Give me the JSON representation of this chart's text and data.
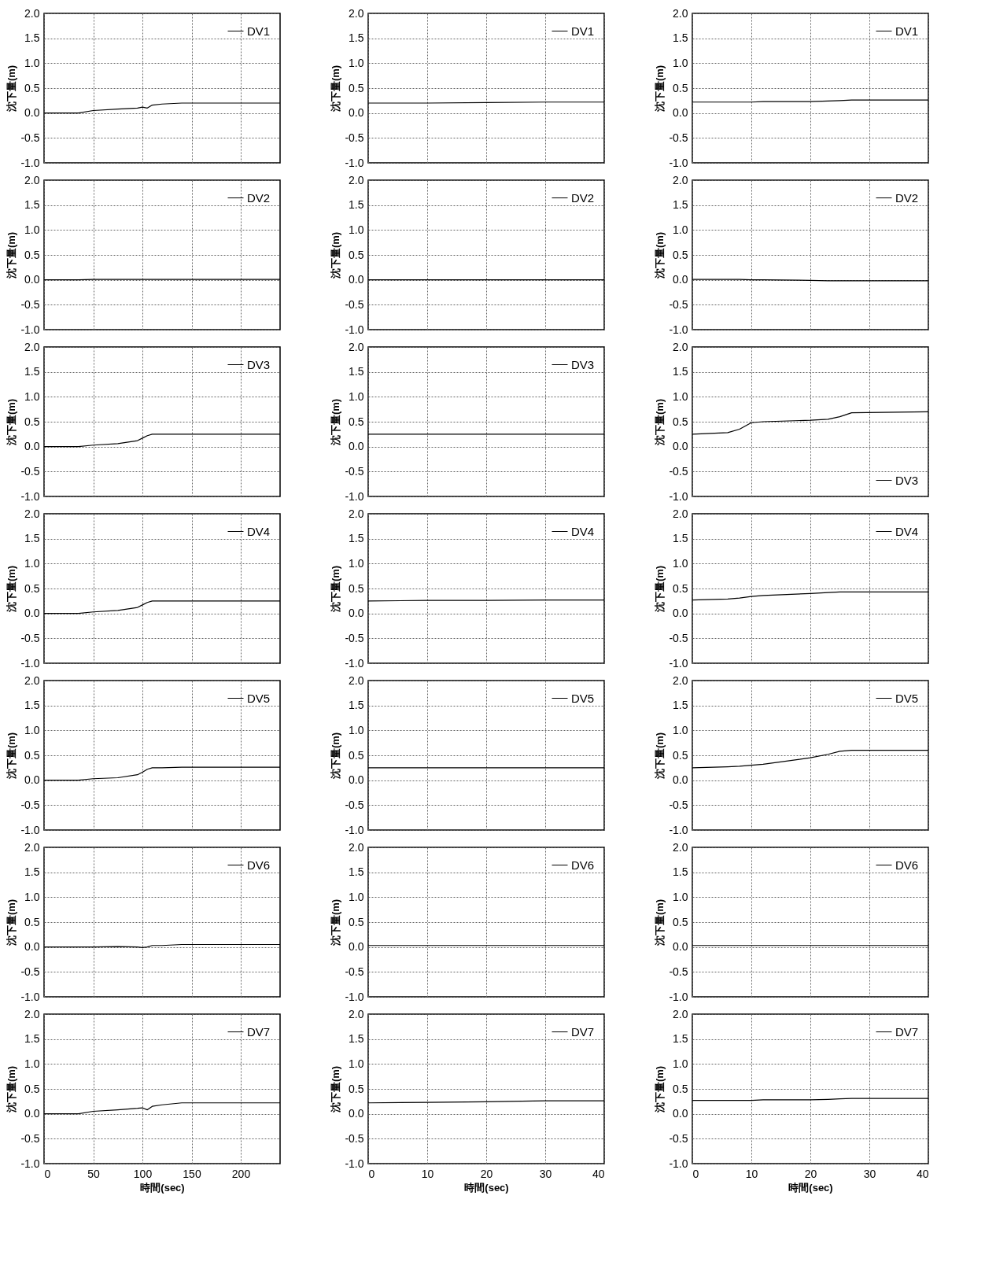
{
  "chart_data": [
    {
      "type": "line",
      "ylabel": "沈下量(m)",
      "x": [
        0,
        35,
        50,
        75,
        95,
        100,
        105,
        110,
        120,
        140,
        240
      ],
      "series": [
        {
          "name": "DV1",
          "color": "#000000",
          "values": [
            0,
            0,
            0.05,
            0.08,
            0.1,
            0.12,
            0.1,
            0.16,
            0.18,
            0.2,
            0.2
          ]
        }
      ],
      "xlim": [
        0,
        240
      ],
      "xticks": [
        0,
        50,
        100,
        150,
        200
      ],
      "ylim": [
        -1,
        2
      ],
      "yticks": [
        {
          "value": -1,
          "label": "-1.0"
        },
        {
          "value": -0.5,
          "label": "-0.5"
        },
        {
          "value": 0,
          "label": "0.0"
        },
        {
          "value": 0.5,
          "label": "0.5"
        },
        {
          "value": 1,
          "label": "1.0"
        },
        {
          "value": 1.5,
          "label": "1.5"
        },
        {
          "value": 2,
          "label": "2.0"
        }
      ],
      "grid": true,
      "legend": "top right",
      "tick_labels": "y"
    },
    {
      "type": "line",
      "ylabel": "沈下量(m)",
      "x": [
        0,
        10,
        20,
        30,
        40
      ],
      "series": [
        {
          "name": "DV1",
          "color": "#000000",
          "values": [
            0.2,
            0.2,
            0.21,
            0.22,
            0.22
          ]
        }
      ],
      "xlim": [
        0,
        40
      ],
      "xticks": [
        0,
        10,
        20,
        30,
        40
      ],
      "ylim": [
        -1,
        2
      ],
      "yticks": [
        {
          "value": -1,
          "label": "-1.0"
        },
        {
          "value": -0.5,
          "label": "-0.5"
        },
        {
          "value": 0,
          "label": "0.0"
        },
        {
          "value": 0.5,
          "label": "0.5"
        },
        {
          "value": 1,
          "label": "1.0"
        },
        {
          "value": 1.5,
          "label": "1.5"
        },
        {
          "value": 2,
          "label": "2.0"
        }
      ],
      "grid": true,
      "legend": "top right",
      "tick_labels": "y"
    },
    {
      "type": "line",
      "ylabel": "沈下量(m)",
      "x": [
        0,
        6,
        8,
        10,
        12,
        20,
        23,
        25,
        27,
        40
      ],
      "series": [
        {
          "name": "DV1",
          "color": "#000000",
          "values": [
            0.22,
            0.22,
            0.22,
            0.22,
            0.23,
            0.23,
            0.24,
            0.25,
            0.26,
            0.26
          ]
        }
      ],
      "xlim": [
        0,
        40
      ],
      "xticks": [
        0,
        10,
        20,
        30,
        40
      ],
      "ylim": [
        -1,
        2
      ],
      "yticks": [
        {
          "value": -1,
          "label": "-1.0"
        },
        {
          "value": -0.5,
          "label": "-0.5"
        },
        {
          "value": 0,
          "label": "0.0"
        },
        {
          "value": 0.5,
          "label": "0.5"
        },
        {
          "value": 1,
          "label": "1.0"
        },
        {
          "value": 1.5,
          "label": "1.5"
        },
        {
          "value": 2,
          "label": "2.0"
        }
      ],
      "grid": true,
      "legend": "top right",
      "tick_labels": "y"
    },
    {
      "type": "line",
      "ylabel": "沈下量(m)",
      "x": [
        0,
        35,
        50,
        75,
        95,
        100,
        105,
        110,
        120,
        140,
        240
      ],
      "series": [
        {
          "name": "DV2",
          "color": "#000000",
          "values": [
            0,
            0,
            0.01,
            0.01,
            0.01,
            0.01,
            0.01,
            0.01,
            0.01,
            0.01,
            0.01
          ]
        }
      ],
      "xlim": [
        0,
        240
      ],
      "xticks": [
        0,
        50,
        100,
        150,
        200
      ],
      "ylim": [
        -1,
        2
      ],
      "yticks": [
        {
          "value": -1,
          "label": "-1.0"
        },
        {
          "value": -0.5,
          "label": "-0.5"
        },
        {
          "value": 0,
          "label": "0.0"
        },
        {
          "value": 0.5,
          "label": "0.5"
        },
        {
          "value": 1,
          "label": "1.0"
        },
        {
          "value": 1.5,
          "label": "1.5"
        },
        {
          "value": 2,
          "label": "2.0"
        }
      ],
      "grid": true,
      "legend": "top right",
      "tick_labels": "y"
    },
    {
      "type": "line",
      "ylabel": "沈下量(m)",
      "x": [
        0,
        10,
        20,
        30,
        40
      ],
      "series": [
        {
          "name": "DV2",
          "color": "#000000",
          "values": [
            0,
            0,
            0,
            0,
            0
          ]
        }
      ],
      "xlim": [
        0,
        40
      ],
      "xticks": [
        0,
        10,
        20,
        30,
        40
      ],
      "ylim": [
        -1,
        2
      ],
      "yticks": [
        {
          "value": -1,
          "label": "-1.0"
        },
        {
          "value": -0.5,
          "label": "-0.5"
        },
        {
          "value": 0,
          "label": "0.0"
        },
        {
          "value": 0.5,
          "label": "0.5"
        },
        {
          "value": 1,
          "label": "1.0"
        },
        {
          "value": 1.5,
          "label": "1.5"
        },
        {
          "value": 2,
          "label": "2.0"
        }
      ],
      "grid": true,
      "legend": "top right",
      "tick_labels": "y"
    },
    {
      "type": "line",
      "ylabel": "沈下量(m)",
      "x": [
        0,
        6,
        8,
        10,
        12,
        20,
        23,
        25,
        27,
        40
      ],
      "series": [
        {
          "name": "DV2",
          "color": "#000000",
          "values": [
            0.01,
            0.01,
            0.01,
            0,
            0,
            -0.01,
            -0.02,
            -0.02,
            -0.02,
            -0.02
          ]
        }
      ],
      "xlim": [
        0,
        40
      ],
      "xticks": [
        0,
        10,
        20,
        30,
        40
      ],
      "ylim": [
        -1,
        2
      ],
      "yticks": [
        {
          "value": -1,
          "label": "-1.0"
        },
        {
          "value": -0.5,
          "label": "-0.5"
        },
        {
          "value": 0,
          "label": "0.0"
        },
        {
          "value": 0.5,
          "label": "0.5"
        },
        {
          "value": 1,
          "label": "1.0"
        },
        {
          "value": 1.5,
          "label": "1.5"
        },
        {
          "value": 2,
          "label": "2.0"
        }
      ],
      "grid": true,
      "legend": "top right",
      "tick_labels": "y"
    },
    {
      "type": "line",
      "ylabel": "沈下量(m)",
      "x": [
        0,
        35,
        50,
        75,
        95,
        100,
        105,
        110,
        120,
        140,
        240
      ],
      "series": [
        {
          "name": "DV3",
          "color": "#000000",
          "values": [
            0,
            0,
            0.03,
            0.06,
            0.12,
            0.17,
            0.22,
            0.25,
            0.25,
            0.25,
            0.25
          ]
        }
      ],
      "xlim": [
        0,
        240
      ],
      "xticks": [
        0,
        50,
        100,
        150,
        200
      ],
      "ylim": [
        -1,
        2
      ],
      "yticks": [
        {
          "value": -1,
          "label": "-1.0"
        },
        {
          "value": -0.5,
          "label": "-0.5"
        },
        {
          "value": 0,
          "label": "0.0"
        },
        {
          "value": 0.5,
          "label": "0.5"
        },
        {
          "value": 1,
          "label": "1.0"
        },
        {
          "value": 1.5,
          "label": "1.5"
        },
        {
          "value": 2,
          "label": "2.0"
        }
      ],
      "grid": true,
      "legend": "top right",
      "tick_labels": "y"
    },
    {
      "type": "line",
      "ylabel": "沈下量(m)",
      "x": [
        0,
        10,
        20,
        30,
        40
      ],
      "series": [
        {
          "name": "DV3",
          "color": "#000000",
          "values": [
            0.25,
            0.25,
            0.25,
            0.25,
            0.25
          ]
        }
      ],
      "xlim": [
        0,
        40
      ],
      "xticks": [
        0,
        10,
        20,
        30,
        40
      ],
      "ylim": [
        -1,
        2
      ],
      "yticks": [
        {
          "value": -1,
          "label": "-1.0"
        },
        {
          "value": -0.5,
          "label": "-0.5"
        },
        {
          "value": 0,
          "label": "0.0"
        },
        {
          "value": 0.5,
          "label": "0.5"
        },
        {
          "value": 1,
          "label": "1.0"
        },
        {
          "value": 1.5,
          "label": "1.5"
        },
        {
          "value": 2,
          "label": "2.0"
        }
      ],
      "grid": true,
      "legend": "top right",
      "tick_labels": "y"
    },
    {
      "type": "line",
      "ylabel": "沈下量(m)",
      "x": [
        0,
        6,
        8,
        10,
        12,
        20,
        23,
        25,
        27,
        40
      ],
      "series": [
        {
          "name": "DV3",
          "color": "#000000",
          "values": [
            0.25,
            0.28,
            0.35,
            0.48,
            0.5,
            0.53,
            0.55,
            0.6,
            0.68,
            0.7
          ]
        }
      ],
      "xlim": [
        0,
        40
      ],
      "xticks": [
        0,
        10,
        20,
        30,
        40
      ],
      "ylim": [
        -1,
        2
      ],
      "yticks": [
        {
          "value": -1,
          "label": "-1.0"
        },
        {
          "value": -0.5,
          "label": "-0.5"
        },
        {
          "value": 0,
          "label": "0.0"
        },
        {
          "value": 0.5,
          "label": "0.5"
        },
        {
          "value": 1,
          "label": "1.0"
        },
        {
          "value": 1.5,
          "label": "1.5"
        },
        {
          "value": 2,
          "label": "2.0"
        }
      ],
      "grid": true,
      "legend": "bottom right",
      "tick_labels": "y"
    },
    {
      "type": "line",
      "ylabel": "沈下量(m)",
      "x": [
        0,
        35,
        50,
        75,
        95,
        100,
        105,
        110,
        120,
        140,
        240
      ],
      "series": [
        {
          "name": "DV4",
          "color": "#000000",
          "values": [
            0,
            0,
            0.03,
            0.06,
            0.12,
            0.17,
            0.22,
            0.25,
            0.25,
            0.25,
            0.25
          ]
        }
      ],
      "xlim": [
        0,
        240
      ],
      "xticks": [
        0,
        50,
        100,
        150,
        200
      ],
      "ylim": [
        -1,
        2
      ],
      "yticks": [
        {
          "value": -1,
          "label": "-1.0"
        },
        {
          "value": -0.5,
          "label": "-0.5"
        },
        {
          "value": 0,
          "label": "0.0"
        },
        {
          "value": 0.5,
          "label": "0.5"
        },
        {
          "value": 1,
          "label": "1.0"
        },
        {
          "value": 1.5,
          "label": "1.5"
        },
        {
          "value": 2,
          "label": "2.0"
        }
      ],
      "grid": true,
      "legend": "top right",
      "tick_labels": "y"
    },
    {
      "type": "line",
      "ylabel": "沈下量(m)",
      "x": [
        0,
        10,
        20,
        30,
        40
      ],
      "series": [
        {
          "name": "DV4",
          "color": "#000000",
          "values": [
            0.25,
            0.26,
            0.26,
            0.27,
            0.27
          ]
        }
      ],
      "xlim": [
        0,
        40
      ],
      "xticks": [
        0,
        10,
        20,
        30,
        40
      ],
      "ylim": [
        -1,
        2
      ],
      "yticks": [
        {
          "value": -1,
          "label": "-1.0"
        },
        {
          "value": -0.5,
          "label": "-0.5"
        },
        {
          "value": 0,
          "label": "0.0"
        },
        {
          "value": 0.5,
          "label": "0.5"
        },
        {
          "value": 1,
          "label": "1.0"
        },
        {
          "value": 1.5,
          "label": "1.5"
        },
        {
          "value": 2,
          "label": "2.0"
        }
      ],
      "grid": true,
      "legend": "top right",
      "tick_labels": "y"
    },
    {
      "type": "line",
      "ylabel": "沈下量(m)",
      "x": [
        0,
        6,
        8,
        10,
        12,
        20,
        23,
        25,
        27,
        40
      ],
      "series": [
        {
          "name": "DV4",
          "color": "#000000",
          "values": [
            0.27,
            0.29,
            0.31,
            0.34,
            0.36,
            0.4,
            0.42,
            0.43,
            0.43,
            0.43
          ]
        }
      ],
      "xlim": [
        0,
        40
      ],
      "xticks": [
        0,
        10,
        20,
        30,
        40
      ],
      "ylim": [
        -1,
        2
      ],
      "yticks": [
        {
          "value": -1,
          "label": "-1.0"
        },
        {
          "value": -0.5,
          "label": "-0.5"
        },
        {
          "value": 0,
          "label": "0.0"
        },
        {
          "value": 0.5,
          "label": "0.5"
        },
        {
          "value": 1,
          "label": "1.0"
        },
        {
          "value": 1.5,
          "label": "1.5"
        },
        {
          "value": 2,
          "label": "2.0"
        }
      ],
      "grid": true,
      "legend": "top right",
      "tick_labels": "y"
    },
    {
      "type": "line",
      "ylabel": "沈下量(m)",
      "x": [
        0,
        35,
        50,
        75,
        95,
        100,
        105,
        110,
        120,
        140,
        240
      ],
      "series": [
        {
          "name": "DV5",
          "color": "#000000",
          "values": [
            0,
            0,
            0.03,
            0.05,
            0.11,
            0.16,
            0.22,
            0.25,
            0.25,
            0.26,
            0.26
          ]
        }
      ],
      "xlim": [
        0,
        240
      ],
      "xticks": [
        0,
        50,
        100,
        150,
        200
      ],
      "ylim": [
        -1,
        2
      ],
      "yticks": [
        {
          "value": -1,
          "label": "-1.0"
        },
        {
          "value": -0.5,
          "label": "-0.5"
        },
        {
          "value": 0,
          "label": "0.0"
        },
        {
          "value": 0.5,
          "label": "0.5"
        },
        {
          "value": 1,
          "label": "1.0"
        },
        {
          "value": 1.5,
          "label": "1.5"
        },
        {
          "value": 2,
          "label": "2.0"
        }
      ],
      "grid": true,
      "legend": "top right",
      "tick_labels": "y"
    },
    {
      "type": "line",
      "ylabel": "沈下量(m)",
      "x": [
        0,
        10,
        20,
        30,
        40
      ],
      "series": [
        {
          "name": "DV5",
          "color": "#000000",
          "values": [
            0.25,
            0.25,
            0.25,
            0.25,
            0.25
          ]
        }
      ],
      "xlim": [
        0,
        40
      ],
      "xticks": [
        0,
        10,
        20,
        30,
        40
      ],
      "ylim": [
        -1,
        2
      ],
      "yticks": [
        {
          "value": -1,
          "label": "-1.0"
        },
        {
          "value": -0.5,
          "label": "-0.5"
        },
        {
          "value": 0,
          "label": "0.0"
        },
        {
          "value": 0.5,
          "label": "0.5"
        },
        {
          "value": 1,
          "label": "1.0"
        },
        {
          "value": 1.5,
          "label": "1.5"
        },
        {
          "value": 2,
          "label": "2.0"
        }
      ],
      "grid": true,
      "legend": "top right",
      "tick_labels": "y"
    },
    {
      "type": "line",
      "ylabel": "沈下量(m)",
      "x": [
        0,
        6,
        8,
        10,
        12,
        20,
        23,
        25,
        27,
        40
      ],
      "series": [
        {
          "name": "DV5",
          "color": "#000000",
          "values": [
            0.25,
            0.27,
            0.28,
            0.3,
            0.32,
            0.45,
            0.52,
            0.58,
            0.6,
            0.6
          ]
        }
      ],
      "xlim": [
        0,
        40
      ],
      "xticks": [
        0,
        10,
        20,
        30,
        40
      ],
      "ylim": [
        -1,
        2
      ],
      "yticks": [
        {
          "value": -1,
          "label": "-1.0"
        },
        {
          "value": -0.5,
          "label": "-0.5"
        },
        {
          "value": 0,
          "label": "0.0"
        },
        {
          "value": 0.5,
          "label": "0.5"
        },
        {
          "value": 1,
          "label": "1.0"
        },
        {
          "value": 1.5,
          "label": "1.5"
        },
        {
          "value": 2,
          "label": "2.0"
        }
      ],
      "grid": true,
      "legend": "top right",
      "tick_labels": "y"
    },
    {
      "type": "line",
      "ylabel": "沈下量(m)",
      "x": [
        0,
        35,
        50,
        75,
        95,
        100,
        105,
        110,
        120,
        140,
        240
      ],
      "series": [
        {
          "name": "DV6",
          "color": "#000000",
          "values": [
            0,
            0,
            0,
            0.01,
            0,
            -0.01,
            0,
            0.03,
            0.03,
            0.05,
            0.05
          ]
        }
      ],
      "xlim": [
        0,
        240
      ],
      "xticks": [
        0,
        50,
        100,
        150,
        200
      ],
      "ylim": [
        -1,
        2
      ],
      "yticks": [
        {
          "value": -1,
          "label": "-1.0"
        },
        {
          "value": -0.5,
          "label": "-0.5"
        },
        {
          "value": 0,
          "label": "0.0"
        },
        {
          "value": 0.5,
          "label": "0.5"
        },
        {
          "value": 1,
          "label": "1.0"
        },
        {
          "value": 1.5,
          "label": "1.5"
        },
        {
          "value": 2,
          "label": "2.0"
        }
      ],
      "grid": true,
      "legend": "top right",
      "tick_labels": "y"
    },
    {
      "type": "line",
      "ylabel": "沈下量(m)",
      "x": [
        0,
        10,
        20,
        30,
        40
      ],
      "series": [
        {
          "name": "DV6",
          "color": "#000000",
          "values": [
            0.03,
            0.03,
            0.03,
            0.03,
            0.03
          ]
        }
      ],
      "xlim": [
        0,
        40
      ],
      "xticks": [
        0,
        10,
        20,
        30,
        40
      ],
      "ylim": [
        -1,
        2
      ],
      "yticks": [
        {
          "value": -1,
          "label": "-1.0"
        },
        {
          "value": -0.5,
          "label": "-0.5"
        },
        {
          "value": 0,
          "label": "0.0"
        },
        {
          "value": 0.5,
          "label": "0.5"
        },
        {
          "value": 1,
          "label": "1.0"
        },
        {
          "value": 1.5,
          "label": "1.5"
        },
        {
          "value": 2,
          "label": "2.0"
        }
      ],
      "grid": true,
      "legend": "top right",
      "tick_labels": "y"
    },
    {
      "type": "line",
      "ylabel": "沈下量(m)",
      "x": [
        0,
        6,
        8,
        10,
        12,
        20,
        23,
        25,
        27,
        40
      ],
      "series": [
        {
          "name": "DV6",
          "color": "#000000",
          "values": [
            0.03,
            0.03,
            0.03,
            0.03,
            0.03,
            0.03,
            0.03,
            0.03,
            0.03,
            0.03
          ]
        }
      ],
      "xlim": [
        0,
        40
      ],
      "xticks": [
        0,
        10,
        20,
        30,
        40
      ],
      "ylim": [
        -1,
        2
      ],
      "yticks": [
        {
          "value": -1,
          "label": "-1.0"
        },
        {
          "value": -0.5,
          "label": "-0.5"
        },
        {
          "value": 0,
          "label": "0.0"
        },
        {
          "value": 0.5,
          "label": "0.5"
        },
        {
          "value": 1,
          "label": "1.0"
        },
        {
          "value": 1.5,
          "label": "1.5"
        },
        {
          "value": 2,
          "label": "2.0"
        }
      ],
      "grid": true,
      "legend": "top right",
      "tick_labels": "y"
    },
    {
      "type": "line",
      "xlabel": "時間(sec)",
      "ylabel": "沈下量(m)",
      "x": [
        0,
        35,
        50,
        75,
        95,
        100,
        105,
        110,
        120,
        140,
        240
      ],
      "series": [
        {
          "name": "DV7",
          "color": "#000000",
          "values": [
            0,
            0,
            0.05,
            0.08,
            0.11,
            0.12,
            0.08,
            0.15,
            0.18,
            0.22,
            0.22
          ]
        }
      ],
      "xlim": [
        0,
        240
      ],
      "xticks": [
        0,
        50,
        100,
        150,
        200
      ],
      "ylim": [
        -1,
        2
      ],
      "yticks": [
        {
          "value": -1,
          "label": "-1.0"
        },
        {
          "value": -0.5,
          "label": "-0.5"
        },
        {
          "value": 0,
          "label": "0.0"
        },
        {
          "value": 0.5,
          "label": "0.5"
        },
        {
          "value": 1,
          "label": "1.0"
        },
        {
          "value": 1.5,
          "label": "1.5"
        },
        {
          "value": 2,
          "label": "2.0"
        }
      ],
      "grid": true,
      "legend": "top right"
    },
    {
      "type": "line",
      "xlabel": "時間(sec)",
      "ylabel": "沈下量(m)",
      "x": [
        0,
        10,
        20,
        30,
        40
      ],
      "series": [
        {
          "name": "DV7",
          "color": "#000000",
          "values": [
            0.22,
            0.23,
            0.24,
            0.26,
            0.26
          ]
        }
      ],
      "xlim": [
        0,
        40
      ],
      "xticks": [
        0,
        10,
        20,
        30,
        40
      ],
      "ylim": [
        -1,
        2
      ],
      "yticks": [
        {
          "value": -1,
          "label": "-1.0"
        },
        {
          "value": -0.5,
          "label": "-0.5"
        },
        {
          "value": 0,
          "label": "0.0"
        },
        {
          "value": 0.5,
          "label": "0.5"
        },
        {
          "value": 1,
          "label": "1.0"
        },
        {
          "value": 1.5,
          "label": "1.5"
        },
        {
          "value": 2,
          "label": "2.0"
        }
      ],
      "grid": true,
      "legend": "top right"
    },
    {
      "type": "line",
      "xlabel": "時間(sec)",
      "ylabel": "沈下量(m)",
      "x": [
        0,
        6,
        8,
        10,
        12,
        20,
        23,
        25,
        27,
        40
      ],
      "series": [
        {
          "name": "DV7",
          "color": "#000000",
          "values": [
            0.27,
            0.27,
            0.27,
            0.27,
            0.28,
            0.28,
            0.29,
            0.3,
            0.31,
            0.31
          ]
        }
      ],
      "xlim": [
        0,
        40
      ],
      "xticks": [
        0,
        10,
        20,
        30,
        40
      ],
      "ylim": [
        -1,
        2
      ],
      "yticks": [
        {
          "value": -1,
          "label": "-1.0"
        },
        {
          "value": -0.5,
          "label": "-0.5"
        },
        {
          "value": 0,
          "label": "0.0"
        },
        {
          "value": 0.5,
          "label": "0.5"
        },
        {
          "value": 1,
          "label": "1.0"
        },
        {
          "value": 1.5,
          "label": "1.5"
        },
        {
          "value": 2,
          "label": "2.0"
        }
      ],
      "grid": true,
      "legend": "top right"
    }
  ]
}
